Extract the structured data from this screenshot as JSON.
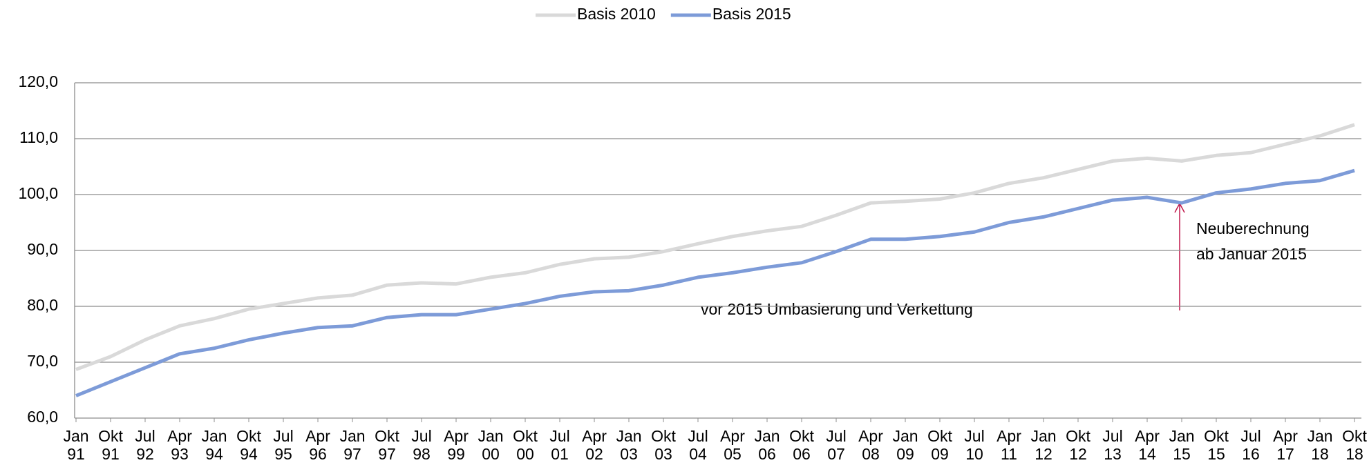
{
  "chart_data": {
    "type": "line",
    "categories": [
      "Jan 91",
      "Okt 91",
      "Jul 92",
      "Apr 93",
      "Jan 94",
      "Okt 94",
      "Jul 95",
      "Apr 96",
      "Jan 97",
      "Okt 97",
      "Jul 98",
      "Apr 99",
      "Jan 00",
      "Okt 00",
      "Jul 01",
      "Apr 02",
      "Jan 03",
      "Okt 03",
      "Jul 04",
      "Apr 05",
      "Jan 06",
      "Okt 06",
      "Jul 07",
      "Apr 08",
      "Jan 09",
      "Okt 09",
      "Jul 10",
      "Apr 11",
      "Jan 12",
      "Okt 12",
      "Jul 13",
      "Apr 14",
      "Jan 15",
      "Okt 15",
      "Jul 16",
      "Apr 17",
      "Jan 18",
      "Okt 18"
    ],
    "series": [
      {
        "name": "Basis 2010",
        "color": "#d9d9d9",
        "values": [
          68.7,
          71,
          74,
          76.5,
          77.8,
          79.5,
          80.5,
          81.5,
          82,
          83.8,
          84.2,
          84,
          85.2,
          86,
          87.5,
          88.5,
          88.8,
          89.8,
          91.2,
          92.5,
          93.5,
          94.3,
          96.3,
          98.5,
          98.8,
          99.2,
          100.3,
          102,
          103,
          104.5,
          106,
          106.5,
          106,
          107,
          107.5,
          109,
          110.5,
          112.5
        ]
      },
      {
        "name": "Basis 2015",
        "color": "#7d9bd8",
        "values": [
          64,
          66.5,
          69,
          71.5,
          72.5,
          74,
          75.2,
          76.2,
          76.5,
          78,
          78.5,
          78.5,
          79.5,
          80.5,
          81.8,
          82.6,
          82.8,
          83.8,
          85.2,
          86,
          87,
          87.8,
          89.8,
          92,
          92,
          92.5,
          93.3,
          95,
          96,
          97.5,
          99,
          99.5,
          98.5,
          100.3,
          101,
          102,
          102.5,
          104.3
        ]
      }
    ],
    "ylim": [
      60,
      120
    ],
    "yticks": [
      {
        "value": 60,
        "label": "60,0"
      },
      {
        "value": 70,
        "label": "70,0"
      },
      {
        "value": 80,
        "label": "80,0"
      },
      {
        "value": 90,
        "label": "90,0"
      },
      {
        "value": 100,
        "label": "100,0"
      },
      {
        "value": 110,
        "label": "110,0"
      },
      {
        "value": 120,
        "label": "120,0"
      }
    ],
    "grid": true,
    "legend": "top",
    "annotations": [
      {
        "lines": [
          "Neuberechnung",
          "ab Januar 2015"
        ]
      },
      {
        "lines": [
          "vor 2015 Umbasierung und Verkettung"
        ]
      }
    ]
  }
}
